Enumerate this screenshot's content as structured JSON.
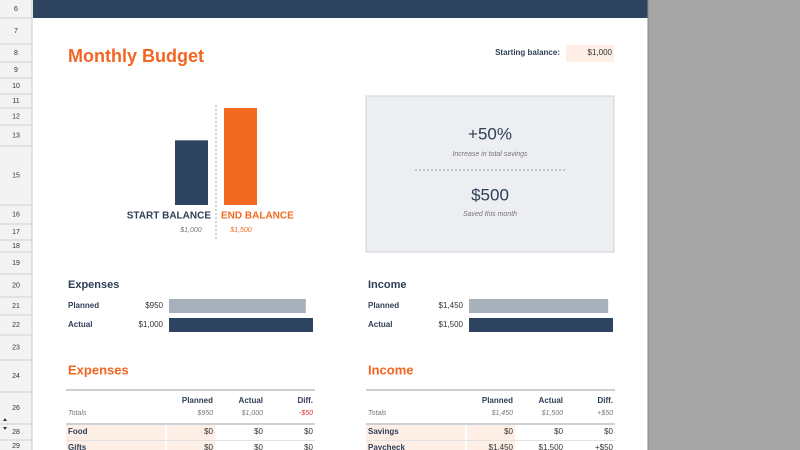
{
  "sheet": {
    "row_numbers": [
      6,
      7,
      8,
      9,
      10,
      11,
      12,
      13,
      15,
      16,
      17,
      18,
      19,
      20,
      21,
      22,
      23,
      24,
      26,
      28,
      29
    ]
  },
  "header": {
    "title": "Monthly Budget",
    "starting_balance_label": "Starting balance:",
    "starting_balance": "$1,000"
  },
  "balance_chart": {
    "bars": [
      {
        "name": "START BALANCE",
        "value": 1000,
        "label": "$1,000",
        "color": "#2e4360"
      },
      {
        "name": "END BALANCE",
        "value": 1500,
        "label": "$1,500",
        "color": "#f26a21"
      }
    ]
  },
  "summary": {
    "percent": "+50%",
    "percent_caption": "Increase in total savings",
    "saved": "$500",
    "saved_caption": "Saved this month"
  },
  "progress": [
    {
      "title": "Expenses",
      "rows": [
        {
          "name": "Planned",
          "value": 950,
          "label": "$950"
        },
        {
          "name": "Actual",
          "value": 1000,
          "label": "$1,000"
        }
      ]
    },
    {
      "title": "Income",
      "rows": [
        {
          "name": "Planned",
          "value": 1450,
          "label": "$1,450"
        },
        {
          "name": "Actual",
          "value": 1500,
          "label": "$1,500"
        }
      ]
    }
  ],
  "tables": [
    {
      "title": "Expenses",
      "columns": [
        "Planned",
        "Actual",
        "Diff."
      ],
      "totals": {
        "name": "Totals",
        "values": [
          "$950",
          "$1,000",
          "-$50"
        ]
      },
      "rows": [
        {
          "name": "Food",
          "values": [
            "$0",
            "$0",
            "$0"
          ]
        },
        {
          "name": "Gifts",
          "values": [
            "$0",
            "$0",
            "$0"
          ]
        }
      ]
    },
    {
      "title": "Income",
      "columns": [
        "Planned",
        "Actual",
        "Diff."
      ],
      "totals": {
        "name": "Totals",
        "values": [
          "$1,450",
          "$1,500",
          "+$50"
        ]
      },
      "rows": [
        {
          "name": "Savings",
          "values": [
            "$0",
            "$0",
            "$0"
          ]
        },
        {
          "name": "Paycheck",
          "values": [
            "$1,450",
            "$1,500",
            "+$50"
          ]
        }
      ]
    }
  ]
}
